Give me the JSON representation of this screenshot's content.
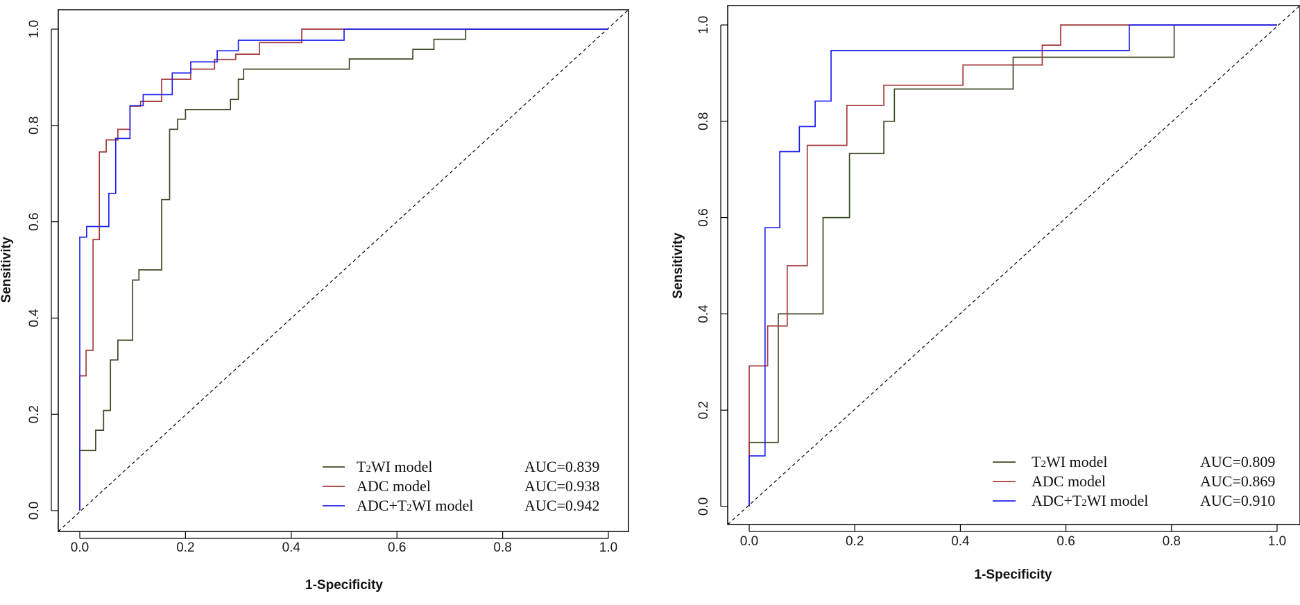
{
  "chart_data": [
    {
      "type": "line",
      "name": "left-roc",
      "xlabel": "1-Specificity",
      "ylabel": "Sensitivity",
      "xlim": [
        0.0,
        1.0
      ],
      "ylim": [
        0.0,
        1.0
      ],
      "xticks": [
        "0.0",
        "0.2",
        "0.4",
        "0.6",
        "0.8",
        "1.0"
      ],
      "yticks": [
        "0.0",
        "0.2",
        "0.4",
        "0.6",
        "0.8",
        "1.0"
      ],
      "legend_position": "bottom-right",
      "diagonal": true,
      "series": [
        {
          "name": "T2WI model",
          "label_main": "T",
          "label_sub": "2",
          "label_rest": "WI model",
          "auc": "AUC=0.839",
          "color": "#3b4a26",
          "points": [
            [
              0,
              0
            ],
            [
              0,
              0.125
            ],
            [
              0.03,
              0.125
            ],
            [
              0.03,
              0.167
            ],
            [
              0.045,
              0.167
            ],
            [
              0.045,
              0.208
            ],
            [
              0.058,
              0.208
            ],
            [
              0.058,
              0.313
            ],
            [
              0.072,
              0.313
            ],
            [
              0.072,
              0.354
            ],
            [
              0.1,
              0.354
            ],
            [
              0.1,
              0.479
            ],
            [
              0.112,
              0.479
            ],
            [
              0.112,
              0.5
            ],
            [
              0.155,
              0.5
            ],
            [
              0.155,
              0.646
            ],
            [
              0.17,
              0.646
            ],
            [
              0.17,
              0.792
            ],
            [
              0.185,
              0.792
            ],
            [
              0.185,
              0.813
            ],
            [
              0.2,
              0.813
            ],
            [
              0.2,
              0.833
            ],
            [
              0.285,
              0.833
            ],
            [
              0.285,
              0.854
            ],
            [
              0.3,
              0.854
            ],
            [
              0.3,
              0.896
            ],
            [
              0.31,
              0.896
            ],
            [
              0.31,
              0.917
            ],
            [
              0.51,
              0.917
            ],
            [
              0.51,
              0.938
            ],
            [
              0.63,
              0.938
            ],
            [
              0.63,
              0.958
            ],
            [
              0.67,
              0.958
            ],
            [
              0.67,
              0.979
            ],
            [
              0.73,
              0.979
            ],
            [
              0.73,
              1.0
            ],
            [
              1.0,
              1.0
            ]
          ]
        },
        {
          "name": "ADC model",
          "label_main": "ADC model",
          "label_sub": "",
          "label_rest": "",
          "auc": "AUC=0.938",
          "color": "#a33a3a",
          "points": [
            [
              0,
              0
            ],
            [
              0,
              0.28
            ],
            [
              0.012,
              0.28
            ],
            [
              0.012,
              0.333
            ],
            [
              0.025,
              0.333
            ],
            [
              0.025,
              0.563
            ],
            [
              0.037,
              0.563
            ],
            [
              0.037,
              0.745
            ],
            [
              0.05,
              0.745
            ],
            [
              0.05,
              0.77
            ],
            [
              0.072,
              0.77
            ],
            [
              0.072,
              0.792
            ],
            [
              0.095,
              0.792
            ],
            [
              0.095,
              0.84
            ],
            [
              0.115,
              0.84
            ],
            [
              0.115,
              0.85
            ],
            [
              0.155,
              0.85
            ],
            [
              0.155,
              0.896
            ],
            [
              0.21,
              0.896
            ],
            [
              0.21,
              0.917
            ],
            [
              0.255,
              0.917
            ],
            [
              0.255,
              0.937
            ],
            [
              0.295,
              0.937
            ],
            [
              0.295,
              0.948
            ],
            [
              0.34,
              0.948
            ],
            [
              0.34,
              0.972
            ],
            [
              0.42,
              0.972
            ],
            [
              0.42,
              1.0
            ],
            [
              1.0,
              1.0
            ]
          ]
        },
        {
          "name": "ADC+T2WI model",
          "label_main": "ADC+T",
          "label_sub": "2",
          "label_rest": "WI model",
          "auc": "AUC=0.942",
          "color": "#1f1ff0",
          "points": [
            [
              0,
              0
            ],
            [
              0,
              0.568
            ],
            [
              0.013,
              0.568
            ],
            [
              0.013,
              0.59
            ],
            [
              0.055,
              0.59
            ],
            [
              0.055,
              0.659
            ],
            [
              0.068,
              0.659
            ],
            [
              0.068,
              0.773
            ],
            [
              0.095,
              0.773
            ],
            [
              0.095,
              0.841
            ],
            [
              0.12,
              0.841
            ],
            [
              0.12,
              0.864
            ],
            [
              0.175,
              0.864
            ],
            [
              0.175,
              0.909
            ],
            [
              0.21,
              0.909
            ],
            [
              0.21,
              0.932
            ],
            [
              0.26,
              0.932
            ],
            [
              0.26,
              0.955
            ],
            [
              0.3,
              0.955
            ],
            [
              0.3,
              0.977
            ],
            [
              0.5,
              0.977
            ],
            [
              0.5,
              1.0
            ],
            [
              1.0,
              1.0
            ]
          ]
        }
      ]
    },
    {
      "type": "line",
      "name": "right-roc",
      "xlabel": "1-Specificity",
      "ylabel": "Sensitivity",
      "xlim": [
        0.0,
        1.0
      ],
      "ylim": [
        0.0,
        1.0
      ],
      "xticks": [
        "0.0",
        "0.2",
        "0.4",
        "0.6",
        "0.8",
        "1.0"
      ],
      "yticks": [
        "0.0",
        "0.2",
        "0.4",
        "0.6",
        "0.8",
        "1.0"
      ],
      "legend_position": "bottom-right",
      "diagonal": true,
      "series": [
        {
          "name": "T2WI model",
          "label_main": "T",
          "label_sub": "2",
          "label_rest": "WI model",
          "auc": "AUC=0.809",
          "color": "#3b4a26",
          "points": [
            [
              0,
              0
            ],
            [
              0,
              0.133
            ],
            [
              0.055,
              0.133
            ],
            [
              0.055,
              0.4
            ],
            [
              0.14,
              0.4
            ],
            [
              0.14,
              0.6
            ],
            [
              0.19,
              0.6
            ],
            [
              0.19,
              0.733
            ],
            [
              0.255,
              0.733
            ],
            [
              0.255,
              0.8
            ],
            [
              0.275,
              0.8
            ],
            [
              0.275,
              0.867
            ],
            [
              0.5,
              0.867
            ],
            [
              0.5,
              0.933
            ],
            [
              0.805,
              0.933
            ],
            [
              0.805,
              1.0
            ],
            [
              1.0,
              1.0
            ]
          ]
        },
        {
          "name": "ADC model",
          "label_main": "ADC model",
          "label_sub": "",
          "label_rest": "",
          "auc": "AUC=0.869",
          "color": "#a33a3a",
          "points": [
            [
              0,
              0
            ],
            [
              0,
              0.292
            ],
            [
              0.035,
              0.292
            ],
            [
              0.035,
              0.375
            ],
            [
              0.072,
              0.375
            ],
            [
              0.072,
              0.5
            ],
            [
              0.11,
              0.5
            ],
            [
              0.11,
              0.75
            ],
            [
              0.185,
              0.75
            ],
            [
              0.185,
              0.833
            ],
            [
              0.255,
              0.833
            ],
            [
              0.255,
              0.875
            ],
            [
              0.405,
              0.875
            ],
            [
              0.405,
              0.917
            ],
            [
              0.555,
              0.917
            ],
            [
              0.555,
              0.958
            ],
            [
              0.59,
              0.958
            ],
            [
              0.59,
              1.0
            ],
            [
              1.0,
              1.0
            ]
          ]
        },
        {
          "name": "ADC+T2WI model",
          "label_main": "ADC+T",
          "label_sub": "2",
          "label_rest": "WI model",
          "auc": "AUC=0.910",
          "color": "#1f1ff0",
          "points": [
            [
              0,
              0
            ],
            [
              0,
              0.105
            ],
            [
              0.03,
              0.105
            ],
            [
              0.03,
              0.579
            ],
            [
              0.058,
              0.579
            ],
            [
              0.058,
              0.737
            ],
            [
              0.095,
              0.737
            ],
            [
              0.095,
              0.789
            ],
            [
              0.125,
              0.789
            ],
            [
              0.125,
              0.842
            ],
            [
              0.155,
              0.842
            ],
            [
              0.155,
              0.947
            ],
            [
              0.72,
              0.947
            ],
            [
              0.72,
              1.0
            ],
            [
              1.0,
              1.0
            ]
          ]
        }
      ]
    }
  ]
}
